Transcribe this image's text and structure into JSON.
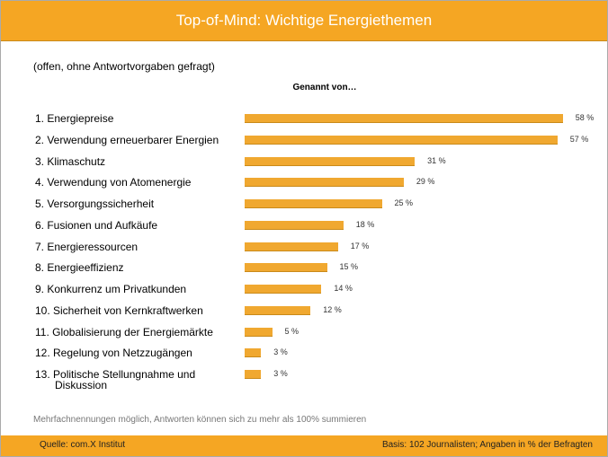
{
  "chart_data": {
    "type": "bar",
    "orientation": "horizontal",
    "title": "Top-of-Mind: Wichtige Energiethemen",
    "subtitle": "(offen, ohne Antwortvorgaben gefragt)",
    "value_header": "Genannt von…",
    "categories": [
      "1. Energiepreise",
      "2. Verwendung erneuerbarer Energien",
      "3. Klimaschutz",
      "4. Verwendung von Atomenergie",
      "5. Versorgungssicherheit",
      "6. Fusionen und Aufkäufe",
      "7. Energieressourcen",
      "8. Energieeffizienz",
      "9. Konkurrenz um Privatkunden",
      "10. Sicherheit von Kernkraftwerken",
      "11. Globalisierung der Energiemärkte",
      "12. Regelung von Netzzugängen",
      "13. Politische Stellungnahme und Diskussion"
    ],
    "values": [
      58,
      57,
      31,
      29,
      25,
      18,
      17,
      15,
      14,
      12,
      5,
      3,
      3
    ],
    "value_labels": [
      "58 %",
      "57 %",
      "31 %",
      "29 %",
      "25 %",
      "18 %",
      "17 %",
      "15 %",
      "14 %",
      "12 %",
      "5 %",
      "3 %",
      "3 %"
    ],
    "color": "#f0a830",
    "xlim": [
      0,
      60
    ],
    "note": "Mehrfachnennungen möglich, Antworten können sich zu mehr als 100% summieren",
    "source": "Quelle: com.X Institut",
    "basis": "Basis: 102 Journalisten; Angaben in % der Befragten"
  }
}
